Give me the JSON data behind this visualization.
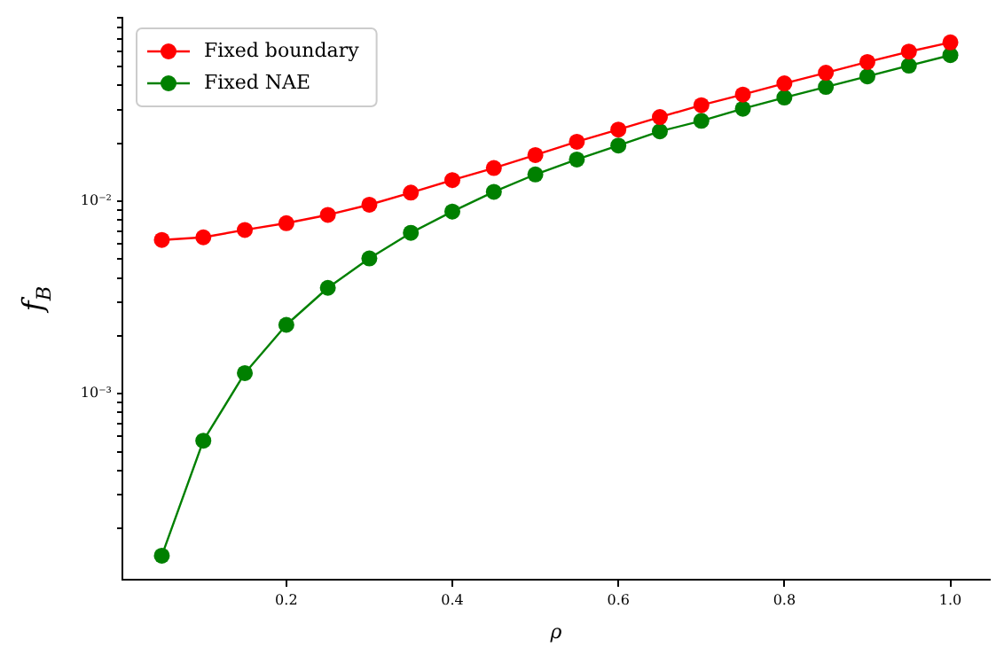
{
  "chart_data": {
    "type": "line",
    "xlabel": "ρ",
    "ylabel": "f$_{B}$",
    "x": [
      0.05,
      0.1,
      0.15,
      0.2,
      0.25,
      0.3,
      0.35,
      0.4,
      0.45,
      0.5,
      0.55,
      0.6,
      0.65,
      0.7,
      0.75,
      0.8,
      0.85,
      0.9,
      0.95,
      1.0
    ],
    "series": [
      {
        "name": "Fixed boundary",
        "color": "#ff0000",
        "values": [
          0.0063,
          0.0065,
          0.0071,
          0.0077,
          0.0085,
          0.0096,
          0.0111,
          0.0129,
          0.0149,
          0.0174,
          0.0204,
          0.0236,
          0.0274,
          0.0316,
          0.0359,
          0.041,
          0.0466,
          0.053,
          0.06,
          0.067
        ]
      },
      {
        "name": "Fixed NAE",
        "color": "#008000",
        "values": [
          0.000144,
          0.00057,
          0.00128,
          0.00228,
          0.00355,
          0.00505,
          0.00686,
          0.00885,
          0.0112,
          0.0138,
          0.0165,
          0.0195,
          0.0231,
          0.0262,
          0.0303,
          0.0346,
          0.0393,
          0.0446,
          0.0507,
          0.0575
        ]
      }
    ],
    "xlim": [
      0.0025,
      1.0475
    ],
    "xticks": [
      0.2,
      0.4,
      0.6,
      0.8,
      {
        "value": 1.0,
        "label": "1.0"
      }
    ],
    "ylim": [
      0.000108,
      0.09
    ],
    "yticks": [
      {
        "value": 0.0002,
        "label": null
      },
      {
        "value": 0.0003,
        "label": null
      },
      {
        "value": 0.0004,
        "label": null
      },
      {
        "value": 0.0005,
        "label": null
      },
      {
        "value": 0.0006,
        "label": null
      },
      {
        "value": 0.0007,
        "label": null
      },
      {
        "value": 0.0008,
        "label": null
      },
      {
        "value": 0.0009,
        "label": null
      },
      {
        "value": 0.001,
        "label": "10⁻³"
      },
      {
        "value": 0.002,
        "label": null
      },
      {
        "value": 0.003,
        "label": null
      },
      {
        "value": 0.004,
        "label": null
      },
      {
        "value": 0.005,
        "label": null
      },
      {
        "value": 0.006,
        "label": null
      },
      {
        "value": 0.007,
        "label": null
      },
      {
        "value": 0.008,
        "label": null
      },
      {
        "value": 0.009,
        "label": null
      },
      {
        "value": 0.01,
        "label": "10⁻²"
      },
      {
        "value": 0.02,
        "label": null
      },
      {
        "value": 0.03,
        "label": null
      },
      {
        "value": 0.04,
        "label": null
      },
      {
        "value": 0.05,
        "label": null
      },
      {
        "value": 0.06,
        "label": null
      },
      {
        "value": 0.07,
        "label": null
      },
      {
        "value": 0.08,
        "label": null
      },
      {
        "value": 0.09,
        "label": null
      }
    ],
    "log": "y",
    "grid": false,
    "legend": "top left",
    "marker": "circle",
    "line_style": "solid"
  }
}
